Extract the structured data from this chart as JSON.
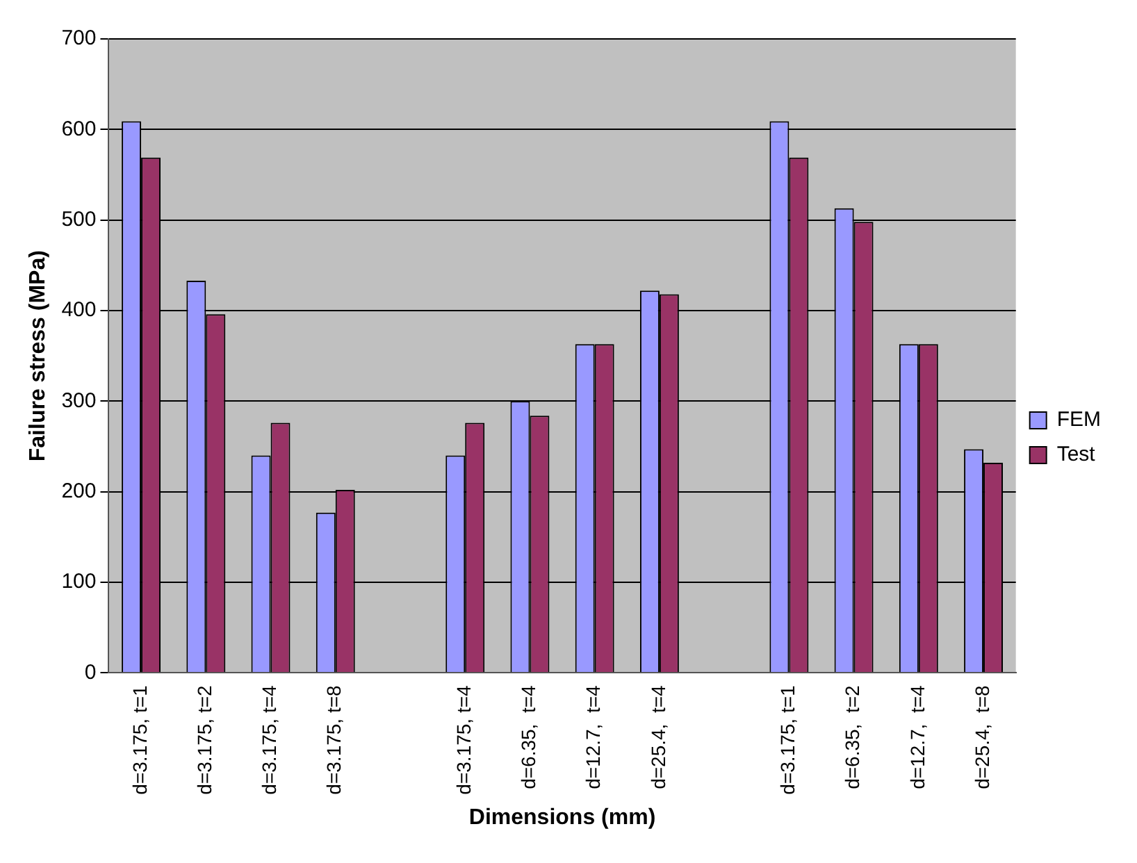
{
  "chart_data": {
    "type": "bar",
    "xlabel": "Dimensions (mm)",
    "ylabel": "Failure stress (MPa)",
    "categories": [
      "d=3.175, t=1",
      "d=3.175, t=2",
      "d=3.175, t=4",
      "d=3.175, t=8",
      null,
      "d=3.175, t=4",
      "d=6.35,  t=4",
      "d=12.7,  t=4",
      "d=25.4,  t=4",
      null,
      "d=3.175, t=1",
      "d=6.35,  t=2",
      "d=12.7,  t=4",
      "d=25.4,  t=8"
    ],
    "series": [
      {
        "name": "FEM",
        "color": "#9999ff",
        "values": [
          609,
          433,
          240,
          177,
          null,
          240,
          300,
          363,
          422,
          null,
          609,
          513,
          363,
          247
        ]
      },
      {
        "name": "Test",
        "color": "#993366",
        "values": [
          569,
          396,
          276,
          202,
          null,
          276,
          284,
          363,
          418,
          null,
          569,
          498,
          363,
          232
        ]
      }
    ],
    "ylim": [
      0,
      700
    ],
    "yticks": [
      0,
      100,
      200,
      300,
      400,
      500,
      600,
      700
    ],
    "grid": "y",
    "legend": "right"
  }
}
